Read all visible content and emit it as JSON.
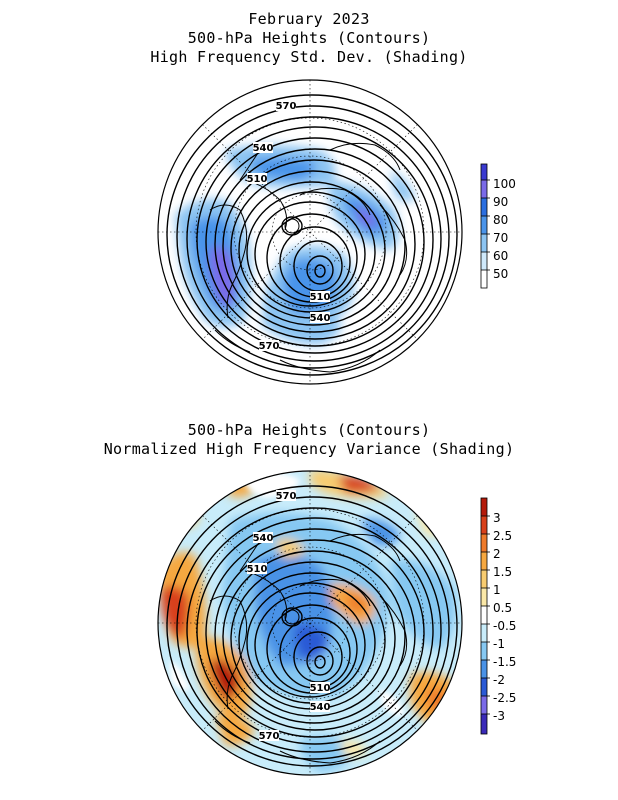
{
  "top_panel": {
    "title_lines": [
      "February 2023",
      "500-hPa Heights (Contours)",
      "High Frequency Std. Dev. (Shading)"
    ],
    "contour_labels": [
      "570",
      "540",
      "510",
      "510",
      "540",
      "570"
    ],
    "colorbar": {
      "labels": [
        "100",
        "90",
        "80",
        "70",
        "60",
        "50"
      ],
      "colors": [
        "#3a3ad0",
        "#7a6ae8",
        "#2a6ee0",
        "#4a94ea",
        "#8cc4f2",
        "#cfe9fb",
        "#ffffff"
      ]
    }
  },
  "bottom_panel": {
    "title_lines": [
      "500-hPa Heights (Contours)",
      "Normalized High Frequency Variance (Shading)"
    ],
    "contour_labels": [
      "570",
      "540",
      "510",
      "510",
      "540",
      "570"
    ],
    "colorbar": {
      "labels": [
        "3",
        "2.5",
        "2",
        "1.5",
        "1",
        "0.5",
        "-0.5",
        "-1",
        "-1.5",
        "-2",
        "-2.5",
        "-3"
      ],
      "colors": [
        "#b41a0a",
        "#d8401a",
        "#ee7a2a",
        "#f6a840",
        "#f8cc70",
        "#fbe8a8",
        "#ffffff",
        "#c8ecfa",
        "#86c8f2",
        "#4a92e6",
        "#2a5ad6",
        "#7a6ae8",
        "#3a2ab8"
      ]
    }
  }
}
